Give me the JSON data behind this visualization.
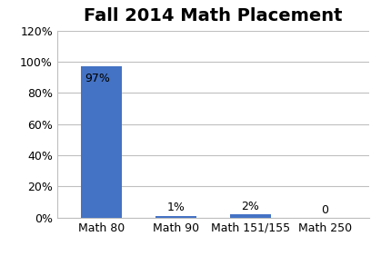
{
  "title": "Fall 2014 Math Placement",
  "categories": [
    "Math 80",
    "Math 90",
    "Math 151/155",
    "Math 250"
  ],
  "values": [
    0.97,
    0.01,
    0.02,
    0
  ],
  "bar_labels": [
    "97%",
    "1%",
    "2%",
    "0"
  ],
  "bar_color": "#4472C4",
  "ylim": [
    0,
    1.2
  ],
  "yticks": [
    0,
    0.2,
    0.4,
    0.6,
    0.8,
    1.0,
    1.2
  ],
  "ytick_labels": [
    "0%",
    "20%",
    "40%",
    "60%",
    "80%",
    "100%",
    "120%"
  ],
  "title_fontsize": 14,
  "label_fontsize": 9,
  "tick_fontsize": 9,
  "background_color": "#ffffff",
  "grid_color": "#bfbfbf"
}
